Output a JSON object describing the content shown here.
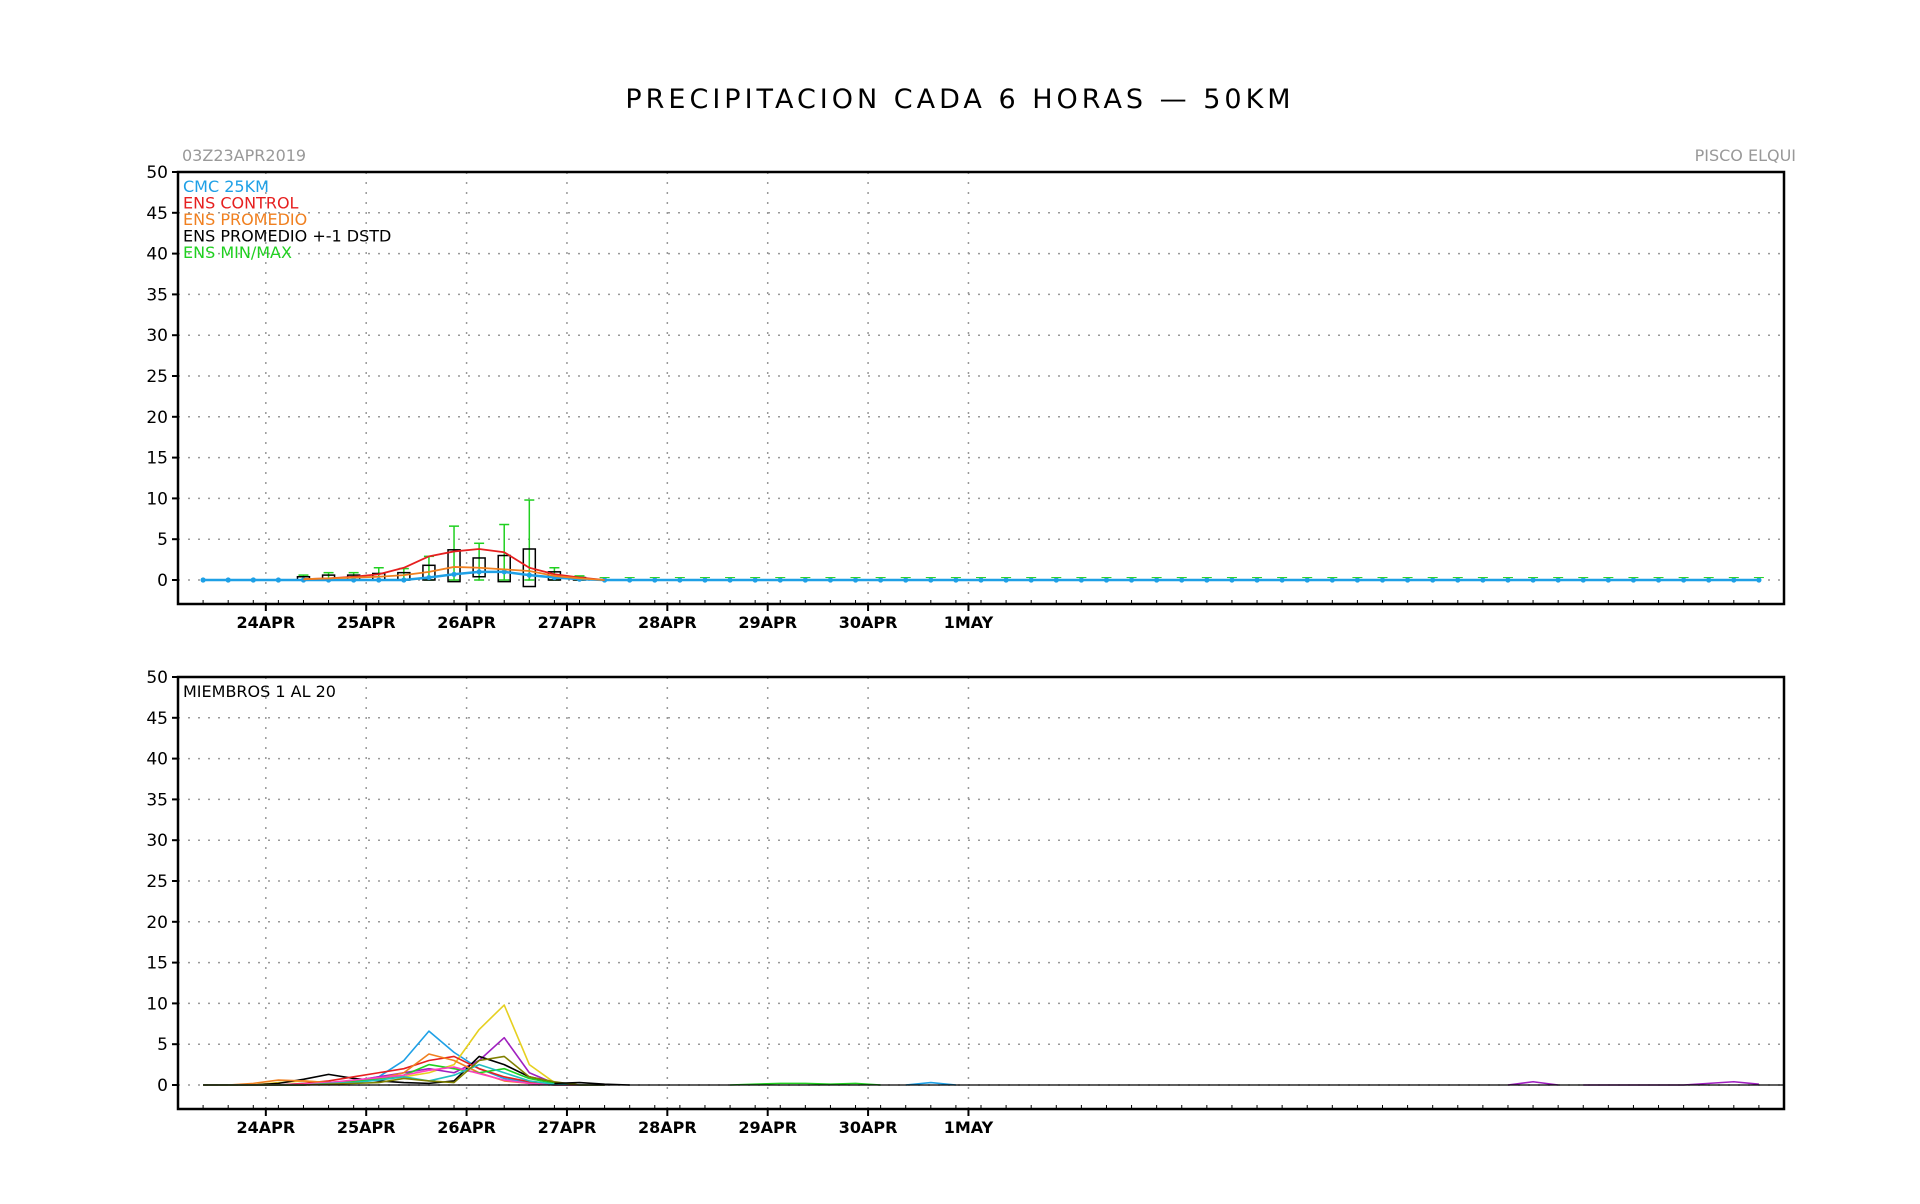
{
  "title": "PRECIPITACION CADA 6 HORAS — 50KM",
  "run_label": "03Z23APR2019",
  "location_label": "PISCO ELQUI",
  "colors": {
    "cmc": "#1ea0e6",
    "control": "#e62020",
    "promedio": "#f08020",
    "dstd": "#000000",
    "minmax": "#20d020",
    "grid": "#999999"
  },
  "chart_data": [
    {
      "type": "line",
      "title": "PRECIPITACION CADA 6 HORAS — 50KM",
      "y_ticks": [
        0,
        5,
        10,
        15,
        20,
        25,
        30,
        35,
        40,
        45,
        50
      ],
      "ylim": [
        -3,
        50
      ],
      "x_ticks": [
        "24APR",
        "25APR",
        "26APR",
        "27APR",
        "28APR",
        "29APR",
        "30APR",
        "1MAY"
      ],
      "x_unit": "6-hourly steps from 03Z23APR2019",
      "grid": true,
      "legend_position": "top-left",
      "legend": [
        {
          "label": "CMC 25KM",
          "color": "#1ea0e6"
        },
        {
          "label": "ENS CONTROL",
          "color": "#e62020"
        },
        {
          "label": "ENS PROMEDIO",
          "color": "#f08020"
        },
        {
          "label": "ENS PROMEDIO +-1 DSTD",
          "color": "#000000"
        },
        {
          "label": "ENS MIN/MAX",
          "color": "#20d020"
        }
      ],
      "series": [
        {
          "name": "CMC 25KM",
          "color": "#1ea0e6",
          "x": [
            1,
            2,
            3,
            4,
            5,
            6,
            7,
            8,
            9,
            10,
            11,
            12,
            13,
            14,
            15,
            16,
            17,
            18,
            19,
            20,
            21,
            22,
            23,
            24,
            25,
            26,
            27,
            28,
            29,
            30,
            31,
            32,
            33,
            34,
            35,
            36,
            37,
            38,
            39,
            40,
            41,
            42,
            43,
            44,
            45,
            46,
            47,
            48,
            49,
            50,
            51,
            52,
            53,
            54,
            55,
            56,
            57,
            58,
            59,
            60,
            61,
            62,
            63
          ],
          "values": [
            0,
            0,
            0,
            0,
            0,
            0,
            0,
            0,
            0,
            0.3,
            0.7,
            1.0,
            1.0,
            0.6,
            0.3,
            0.1,
            0,
            0,
            0,
            0,
            0,
            0,
            0,
            0,
            0,
            0,
            0,
            0,
            0,
            0,
            0,
            0,
            0,
            0,
            0,
            0,
            0,
            0,
            0,
            0,
            0,
            0,
            0,
            0,
            0,
            0,
            0,
            0,
            0,
            0,
            0,
            0,
            0,
            0,
            0,
            0,
            0,
            0,
            0,
            0,
            0,
            0,
            0
          ]
        },
        {
          "name": "ENS CONTROL",
          "color": "#e62020",
          "x": [
            5,
            6,
            7,
            8,
            9,
            10,
            11,
            12,
            13,
            14,
            15,
            16,
            17
          ],
          "values": [
            0.1,
            0.2,
            0.4,
            0.7,
            1.5,
            2.9,
            3.5,
            3.8,
            3.4,
            1.5,
            0.7,
            0.3,
            0
          ]
        },
        {
          "name": "ENS PROMEDIO",
          "color": "#f08020",
          "x": [
            5,
            6,
            7,
            8,
            9,
            10,
            11,
            12,
            13,
            14,
            15,
            16,
            17
          ],
          "values": [
            0.1,
            0.2,
            0.3,
            0.4,
            0.6,
            1.0,
            1.6,
            1.5,
            1.3,
            1.1,
            0.5,
            0.2,
            0
          ]
        }
      ],
      "boxes": [
        {
          "x": 5,
          "mean_minus": 0,
          "mean_plus": 0.4,
          "min": 0,
          "max": 0.6
        },
        {
          "x": 6,
          "mean_minus": 0,
          "mean_plus": 0.6,
          "min": 0,
          "max": 0.9
        },
        {
          "x": 7,
          "mean_minus": 0,
          "mean_plus": 0.6,
          "min": 0,
          "max": 0.9
        },
        {
          "x": 8,
          "mean_minus": 0,
          "mean_plus": 0.8,
          "min": 0,
          "max": 1.5
        },
        {
          "x": 9,
          "mean_minus": 0,
          "mean_plus": 0.9,
          "min": 0,
          "max": 1.4
        },
        {
          "x": 10,
          "mean_minus": 0,
          "mean_plus": 1.8,
          "min": 0,
          "max": 2.9
        },
        {
          "x": 11,
          "mean_minus": -0.2,
          "mean_plus": 3.7,
          "min": 0,
          "max": 6.6
        },
        {
          "x": 12,
          "mean_minus": 0.4,
          "mean_plus": 2.7,
          "min": 0,
          "max": 4.5
        },
        {
          "x": 13,
          "mean_minus": -0.2,
          "mean_plus": 3.0,
          "min": 0,
          "max": 6.8
        },
        {
          "x": 14,
          "mean_minus": -0.8,
          "mean_plus": 3.8,
          "min": 0,
          "max": 9.8
        },
        {
          "x": 15,
          "mean_minus": 0,
          "mean_plus": 1.0,
          "min": 0,
          "max": 1.5
        },
        {
          "x": 16,
          "mean_minus": 0,
          "mean_plus": 0.3,
          "min": 0,
          "max": 0.5
        }
      ]
    },
    {
      "type": "line",
      "title": "",
      "annotation": "MIEMBROS 1 AL 20",
      "y_ticks": [
        0,
        5,
        10,
        15,
        20,
        25,
        30,
        35,
        40,
        45,
        50
      ],
      "ylim": [
        -3,
        50
      ],
      "x_ticks": [
        "24APR",
        "25APR",
        "26APR",
        "27APR",
        "28APR",
        "29APR",
        "30APR",
        "1MAY"
      ],
      "x_unit": "6-hourly steps from 03Z23APR2019",
      "grid": true,
      "series": [
        {
          "color": "#1ea0e6",
          "x": [
            1,
            2,
            3,
            4,
            5,
            6,
            7,
            8,
            9,
            10,
            11,
            12,
            13,
            14,
            15,
            16,
            17
          ],
          "values": [
            0,
            0,
            0,
            0,
            0.2,
            0.3,
            0.5,
            1.0,
            3.0,
            6.6,
            4.0,
            2.0,
            0.8,
            0.3,
            0,
            0,
            0
          ]
        },
        {
          "color": "#e6d020",
          "x": [
            1,
            2,
            3,
            4,
            5,
            6,
            7,
            8,
            9,
            10,
            11,
            12,
            13,
            14,
            15,
            16,
            17
          ],
          "values": [
            0,
            0,
            0,
            0.3,
            0.5,
            0.3,
            0.4,
            0.8,
            1.0,
            1.5,
            2.5,
            6.8,
            9.8,
            2.5,
            0.3,
            0,
            0
          ]
        },
        {
          "color": "#a020c0",
          "x": [
            1,
            2,
            3,
            4,
            5,
            6,
            7,
            8,
            9,
            10,
            11,
            12,
            13,
            14,
            15,
            16,
            17
          ],
          "values": [
            0,
            0,
            0,
            0,
            0,
            0.2,
            0.5,
            1.0,
            1.5,
            2.0,
            1.5,
            3.0,
            5.8,
            1.5,
            0.2,
            0,
            0
          ]
        },
        {
          "color": "#000000",
          "x": [
            1,
            2,
            3,
            4,
            5,
            6,
            7,
            8,
            9,
            10,
            11,
            12,
            13,
            14,
            15,
            16,
            17
          ],
          "values": [
            0,
            0,
            0,
            0.2,
            0.7,
            1.3,
            0.8,
            0.5,
            0.3,
            0.2,
            0.5,
            3.5,
            2.5,
            1.0,
            0.3,
            0,
            0
          ]
        },
        {
          "color": "#e62020",
          "x": [
            1,
            2,
            3,
            4,
            5,
            6,
            7,
            8,
            9,
            10,
            11,
            12,
            13,
            14,
            15,
            16,
            17
          ],
          "values": [
            0,
            0,
            0,
            0,
            0.2,
            0.5,
            1.0,
            1.5,
            2.0,
            3.0,
            3.5,
            2.0,
            1.0,
            0.4,
            0.1,
            0,
            0
          ]
        },
        {
          "color": "#f08020",
          "x": [
            1,
            2,
            3,
            4,
            5,
            6,
            7,
            8,
            9,
            10,
            11,
            12,
            13,
            14,
            15,
            16,
            17
          ],
          "values": [
            0,
            0,
            0.2,
            0.6,
            0.5,
            0.3,
            0.5,
            0.8,
            1.5,
            3.8,
            3.0,
            1.5,
            0.5,
            0.2,
            0,
            0,
            0
          ]
        },
        {
          "color": "#20d020",
          "x": [
            1,
            2,
            3,
            4,
            5,
            6,
            7,
            8,
            9,
            10,
            11,
            12,
            13,
            14,
            15,
            16,
            17
          ],
          "values": [
            0,
            0,
            0,
            0,
            0,
            0.2,
            0.4,
            0.8,
            1.2,
            2.5,
            2.0,
            1.5,
            2.0,
            0.8,
            0.2,
            0,
            0
          ]
        },
        {
          "color": "#ff40c0",
          "x": [
            1,
            2,
            3,
            4,
            5,
            6,
            7,
            8,
            9,
            10,
            11,
            12,
            13,
            14,
            15,
            16,
            17
          ],
          "values": [
            0,
            0,
            0,
            0,
            0.1,
            0.3,
            0.6,
            0.9,
            1.2,
            1.8,
            2.2,
            1.4,
            0.6,
            0.2,
            0,
            0,
            0
          ]
        },
        {
          "color": "#20c0c0",
          "x": [
            1,
            2,
            3,
            4,
            5,
            6,
            7,
            8,
            9,
            10,
            11,
            12,
            13,
            14,
            15,
            16,
            17
          ],
          "values": [
            0,
            0,
            0,
            0,
            0,
            0.2,
            0.3,
            0.6,
            1.0,
            0.5,
            1.2,
            2.5,
            1.5,
            0.5,
            0.1,
            0,
            0
          ]
        },
        {
          "color": "#808000",
          "x": [
            1,
            2,
            3,
            4,
            5,
            6,
            7,
            8,
            9,
            10,
            11,
            12,
            13,
            14,
            15,
            16,
            17
          ],
          "values": [
            0,
            0,
            0,
            0,
            0,
            0.1,
            0.2,
            0.3,
            0.8,
            0.5,
            0.3,
            3.0,
            3.5,
            1.0,
            0.4,
            0,
            0
          ]
        },
        {
          "color": "#a020c0",
          "x": [
            56,
            57,
            58,
            59,
            60,
            61,
            62,
            63
          ],
          "values": [
            0,
            0,
            0,
            0,
            0,
            0.2,
            0.4,
            0.1
          ]
        },
        {
          "color": "#a020c0",
          "x": [
            53,
            54,
            55
          ],
          "values": [
            0,
            0.4,
            0
          ]
        },
        {
          "color": "#20d020",
          "x": [
            22,
            23,
            24,
            25,
            26,
            27,
            28
          ],
          "values": [
            0,
            0.1,
            0.2,
            0.2,
            0.1,
            0.2,
            0
          ]
        },
        {
          "color": "#1ea0e6",
          "x": [
            29,
            30,
            31
          ],
          "values": [
            0,
            0.3,
            0
          ]
        },
        {
          "color": "#000000",
          "x": [
            15,
            16,
            17,
            18
          ],
          "values": [
            0.2,
            0.3,
            0.1,
            0
          ]
        }
      ]
    }
  ]
}
